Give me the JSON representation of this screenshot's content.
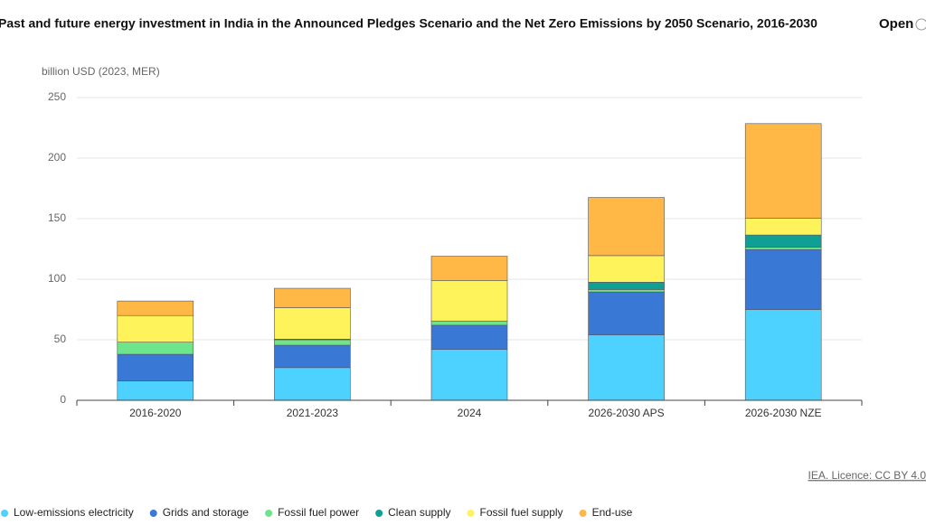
{
  "chart_data": {
    "type": "stacked-bar",
    "title": "Past and future energy investment in India in the Announced Pledges Scenario and the Net Zero Emissions by 2050 Scenario, 2016-2030",
    "y_label": "billion USD (2023, MER)",
    "source": "IEA. Licence: CC BY 4.0",
    "categories": [
      "2016-2020",
      "2021-2023",
      "2024",
      "2026-2030 APS",
      "2026-2030 NZE"
    ],
    "series": [
      {
        "name": "Low-emissions electricity",
        "color": "#4dd2ff",
        "values": [
          16,
          27,
          42,
          54,
          75
        ]
      },
      {
        "name": "Grids and storage",
        "color": "#3a78d6",
        "values": [
          22,
          18.5,
          20,
          35.5,
          49.5
        ]
      },
      {
        "name": "Fossil fuel power",
        "color": "#6ee58a",
        "values": [
          10,
          4.5,
          3.5,
          2,
          2
        ]
      },
      {
        "name": "Clean supply",
        "color": "#109f95",
        "values": [
          0,
          0.5,
          0,
          6,
          10
        ]
      },
      {
        "name": "Fossil fuel supply",
        "color": "#fff35c",
        "values": [
          22,
          26,
          33.5,
          22,
          14
        ]
      },
      {
        "name": "End-use",
        "color": "#ffb845",
        "values": [
          12,
          16,
          20,
          48,
          78
        ]
      }
    ],
    "ylim": [
      0,
      250
    ],
    "yticks": [
      0,
      50,
      100,
      150,
      200,
      250
    ],
    "grid": true
  },
  "open_button": "Open"
}
